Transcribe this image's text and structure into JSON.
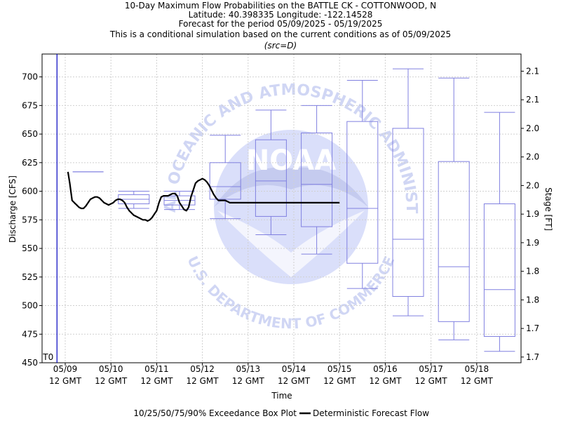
{
  "title_lines": [
    "10-Day Maximum Flow Probabilities on the BATTLE CK - COTTONWOOD, N",
    "Latitude: 40.398335 Longitude: -122.14528",
    "Forecast for the period 05/09/2025 - 05/19/2025",
    "This is a conditional simulation based on the current conditions as of 05/09/2025"
  ],
  "subtitle": "(src=D)",
  "watermark": {
    "logo_text": "NOAA",
    "ring_top": "NATIONAL OCEANIC AND ATMOSPHERIC ADMINISTRATION",
    "ring_bottom": "U.S. DEPARTMENT OF COMMERCE"
  },
  "legend": {
    "box_label": "10/25/50/75/90% Exceedance Box Plot",
    "line_label": "Deterministic Forecast Flow"
  },
  "colors": {
    "box": "#8080e0",
    "forecast_line": "#000000",
    "t0_line": "#0000c0",
    "grid": "#d0d0d0",
    "watermark_blue": "#5a6fd8"
  },
  "chart_data": {
    "type": "box",
    "xlabel": "Time",
    "ylabel": "Discharge [CFS]",
    "y2label": "Stage [FT]",
    "ylim": [
      450,
      720
    ],
    "grid": true,
    "legend_position": "bottom",
    "t0_label": "T0",
    "t0_x": -0.18,
    "x_tick_labels": [
      [
        "05/09",
        "12 GMT"
      ],
      [
        "05/10",
        "12 GMT"
      ],
      [
        "05/11",
        "12 GMT"
      ],
      [
        "05/12",
        "12 GMT"
      ],
      [
        "05/13",
        "12 GMT"
      ],
      [
        "05/14",
        "12 GMT"
      ],
      [
        "05/15",
        "12 GMT"
      ],
      [
        "05/16",
        "12 GMT"
      ],
      [
        "05/17",
        "12 GMT"
      ],
      [
        "05/18",
        "12 GMT"
      ]
    ],
    "y_ticks": [
      450,
      475,
      500,
      525,
      550,
      575,
      600,
      625,
      650,
      675,
      700
    ],
    "y2_ticks": [
      {
        "cfs": 455,
        "label": "1.7"
      },
      {
        "cfs": 480,
        "label": "1.7"
      },
      {
        "cfs": 505,
        "label": "1.8"
      },
      {
        "cfs": 530,
        "label": "1.8"
      },
      {
        "cfs": 555,
        "label": "1.9"
      },
      {
        "cfs": 580,
        "label": "1.9"
      },
      {
        "cfs": 605,
        "label": "2.0"
      },
      {
        "cfs": 630,
        "label": "2.0"
      },
      {
        "cfs": 655,
        "label": "2.0"
      },
      {
        "cfs": 680,
        "label": "2.1"
      },
      {
        "cfs": 705,
        "label": "2.1"
      }
    ],
    "boxes": [
      {
        "day": "05/09",
        "p10": 617,
        "p25": 617,
        "p50": 617,
        "p75": 617,
        "p90": 617
      },
      {
        "day": "05/10",
        "p10": 585,
        "p25": 589,
        "p50": 593,
        "p75": 597,
        "p90": 600
      },
      {
        "day": "05/11",
        "p10": 584,
        "p25": 588,
        "p50": 592,
        "p75": 596,
        "p90": 600
      },
      {
        "day": "05/12",
        "p10": 576,
        "p25": 593,
        "p50": 604,
        "p75": 625,
        "p90": 649
      },
      {
        "day": "05/13",
        "p10": 562,
        "p25": 578,
        "p50": 609,
        "p75": 645,
        "p90": 671
      },
      {
        "day": "05/14",
        "p10": 545,
        "p25": 569,
        "p50": 606,
        "p75": 651,
        "p90": 675
      },
      {
        "day": "05/15",
        "p10": 515,
        "p25": 537,
        "p50": 585,
        "p75": 661,
        "p90": 697
      },
      {
        "day": "05/16",
        "p10": 491,
        "p25": 508,
        "p50": 558,
        "p75": 655,
        "p90": 707
      },
      {
        "day": "05/17",
        "p10": 470,
        "p25": 486,
        "p50": 534,
        "p75": 626,
        "p90": 699
      },
      {
        "day": "05/18",
        "p10": 460,
        "p25": 473,
        "p50": 514,
        "p75": 589,
        "p90": 669
      }
    ],
    "forecast_flow": {
      "x": [
        0.06,
        0.1,
        0.15,
        0.2,
        0.25,
        0.3,
        0.35,
        0.4,
        0.45,
        0.5,
        0.55,
        0.6,
        0.65,
        0.7,
        0.75,
        0.8,
        0.85,
        0.9,
        0.95,
        1.0,
        1.05,
        1.1,
        1.15,
        1.2,
        1.25,
        1.3,
        1.35,
        1.4,
        1.45,
        1.5,
        1.55,
        1.6,
        1.65,
        1.7,
        1.75,
        1.8,
        1.85,
        1.9,
        1.95,
        2.0,
        2.05,
        2.1,
        2.15,
        2.2,
        2.25,
        2.3,
        2.35,
        2.4,
        2.45,
        2.5,
        2.55,
        2.6,
        2.65,
        2.7,
        2.75,
        2.8,
        2.85,
        2.9,
        2.95,
        3.0,
        3.05,
        3.1,
        3.15,
        3.2,
        3.25,
        3.3,
        3.35,
        3.4,
        3.45,
        3.5,
        3.55,
        3.6,
        3.65,
        3.7,
        3.75,
        3.8,
        3.85,
        3.9,
        3.95,
        4.0,
        4.05,
        4.1,
        4.15,
        4.2,
        4.25,
        4.3,
        4.35,
        4.4,
        4.45,
        4.5,
        4.55,
        4.6,
        4.65,
        4.7,
        4.75,
        4.8,
        4.85,
        4.9,
        4.95,
        5.0,
        5.05,
        5.1,
        5.15,
        5.2,
        5.25,
        5.3,
        5.35,
        5.4,
        5.45,
        5.5,
        5.55,
        5.6,
        5.65,
        5.7,
        5.75,
        5.8,
        5.85,
        5.9,
        5.95,
        6.0
      ],
      "y": [
        617,
        607,
        592,
        590,
        588,
        586,
        585,
        585,
        587,
        590,
        593,
        594,
        595,
        595,
        594,
        592,
        590,
        589,
        588,
        589,
        590,
        592,
        593,
        593,
        592,
        590,
        586,
        583,
        581,
        579,
        578,
        577,
        576,
        575,
        575,
        574,
        575,
        577,
        580,
        583,
        590,
        595,
        596,
        596,
        596,
        597,
        598,
        598,
        596,
        590,
        587,
        584,
        583,
        586,
        595,
        601,
        607,
        609,
        610,
        611,
        610,
        608,
        605,
        601,
        597,
        594,
        592,
        592,
        592,
        592,
        591,
        590,
        590,
        590,
        590,
        590,
        590,
        590,
        590,
        590,
        590,
        590,
        590,
        590,
        590,
        590,
        590,
        590,
        590,
        590,
        590,
        590,
        590,
        590,
        590,
        590,
        590,
        590,
        590,
        590,
        590,
        590,
        590,
        590,
        590,
        590,
        590,
        590,
        590,
        590,
        590,
        590,
        590,
        590,
        590,
        590,
        590,
        590,
        590,
        590
      ]
    }
  }
}
